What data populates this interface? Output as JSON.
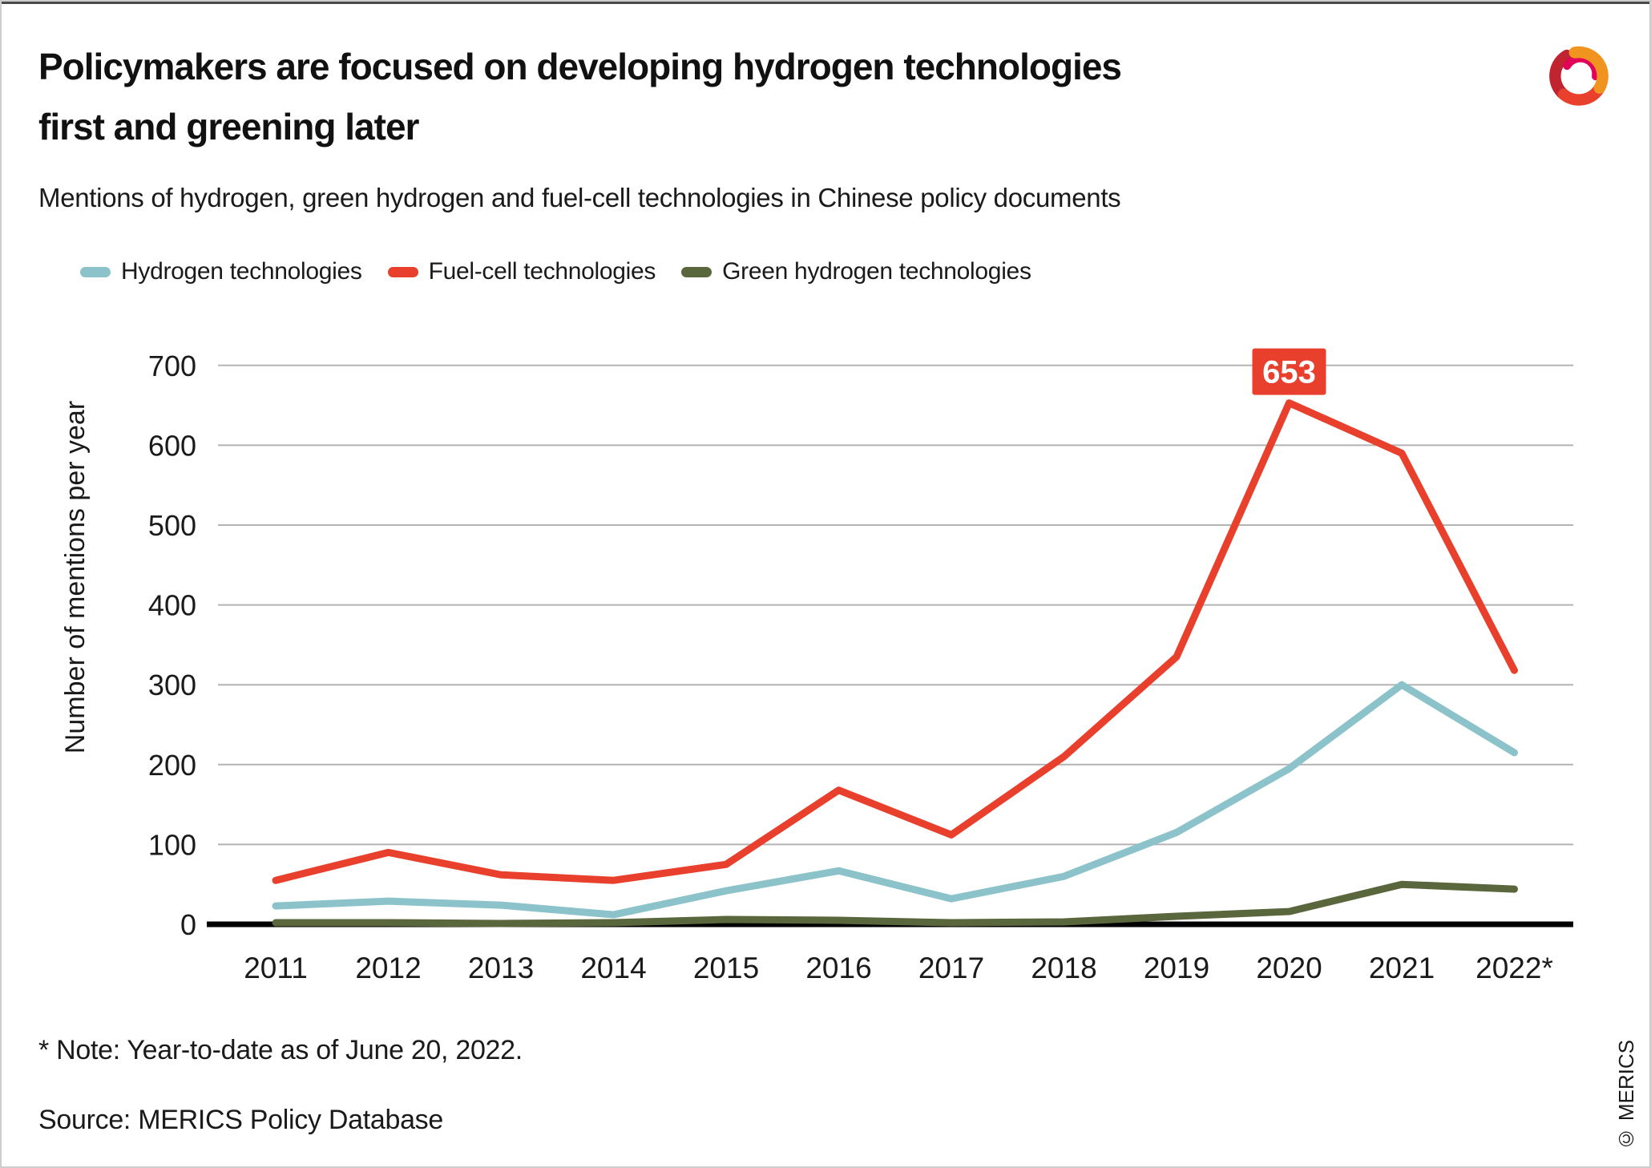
{
  "header": {
    "title_lines": [
      "Policymakers are focused on developing hydrogen technologies",
      "first and greening later"
    ],
    "subtitle": "Mentions of hydrogen, green hydrogen and fuel-cell technologies in Chinese policy documents"
  },
  "chart_data": {
    "type": "line",
    "categories": [
      "2011",
      "2012",
      "2013",
      "2014",
      "2015",
      "2016",
      "2017",
      "2018",
      "2019",
      "2020",
      "2021",
      "2022*"
    ],
    "series": [
      {
        "name": "Hydrogen technologies",
        "color": "#8cc3cb",
        "values": [
          23,
          29,
          24,
          12,
          42,
          67,
          32,
          60,
          115,
          195,
          300,
          215
        ]
      },
      {
        "name": "Fuel-cell technologies",
        "color": "#e8402c",
        "values": [
          55,
          90,
          62,
          55,
          75,
          168,
          112,
          210,
          335,
          653,
          590,
          318
        ]
      },
      {
        "name": "Green hydrogen technologies",
        "color": "#5a673d",
        "values": [
          2,
          2,
          1,
          2,
          6,
          5,
          2,
          3,
          10,
          16,
          50,
          44
        ]
      }
    ],
    "title": "Mentions of hydrogen, green hydrogen and fuel-cell technologies in Chinese policy documents",
    "xlabel": "",
    "ylabel": "Number of mentions per year",
    "yticks": [
      0,
      100,
      200,
      300,
      400,
      500,
      600,
      700
    ],
    "ylim": [
      0,
      700
    ],
    "grid": true,
    "legend_position": "top-left",
    "annotation": {
      "text": "653",
      "series": "Fuel-cell technologies",
      "category": "2020",
      "value": 653,
      "bg": "#e8402c",
      "text_color": "#ffffff"
    }
  },
  "footer": {
    "note": "* Note: Year-to-date as of June 20, 2022.",
    "source": "Source: MERICS Policy Database",
    "copyright": "© MERICS"
  },
  "colors": {
    "grid": "#b3b3b3",
    "axis": "#000000",
    "text": "#1a1a1a",
    "top_strip": "#4a4a4a",
    "border": "#cdcdcd",
    "logo": [
      "#bf2430",
      "#e8402c",
      "#e2005a",
      "#f0931f"
    ]
  }
}
